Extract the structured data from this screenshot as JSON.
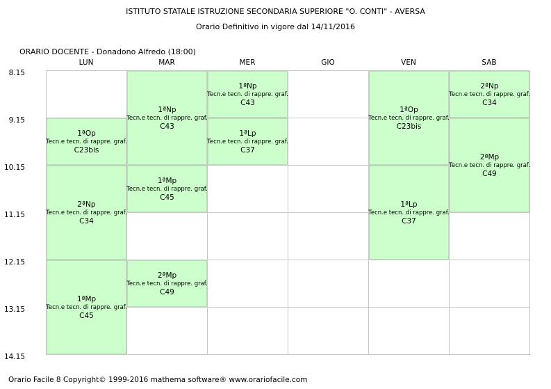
{
  "header": {
    "school": "ISTITUTO STATALE ISTRUZIONE SECONDARIA SUPERIORE \"O. CONTI\" - AVERSA",
    "subtitle": "Orario Definitivo in vigore dal 14/11/2016",
    "teacher": "ORARIO DOCENTE   -   Donadono Alfredo  (18:00)"
  },
  "days": [
    "LUN",
    "MAR",
    "MER",
    "GIO",
    "VEN",
    "SAB"
  ],
  "times": [
    "8.15",
    "9.15",
    "10.15",
    "11.15",
    "12.15",
    "13.15",
    "14.15"
  ],
  "lessons": [
    {
      "day": 0,
      "start": 1,
      "length": 1,
      "class": "1ªOp",
      "subject": "Tecn.e tecn. di rappre. graf.",
      "room": "C23bis"
    },
    {
      "day": 0,
      "start": 2,
      "length": 2,
      "class": "2ªNp",
      "subject": "Tecn.e tecn. di rappre. graf.",
      "room": "C34"
    },
    {
      "day": 0,
      "start": 4,
      "length": 2,
      "class": "1ªMp",
      "subject": "Tecn.e tecn. di rappre. graf.",
      "room": "C45"
    },
    {
      "day": 1,
      "start": 0,
      "length": 2,
      "class": "1ªNp",
      "subject": "Tecn.e tecn. di rappre. graf.",
      "room": "C43"
    },
    {
      "day": 1,
      "start": 2,
      "length": 1,
      "class": "1ªMp",
      "subject": "Tecn.e tecn. di rappre. graf.",
      "room": "C45"
    },
    {
      "day": 1,
      "start": 4,
      "length": 1,
      "class": "2ªMp",
      "subject": "Tecn.e tecn. di rappre. graf.",
      "room": "C49"
    },
    {
      "day": 2,
      "start": 0,
      "length": 1,
      "class": "1ªNp",
      "subject": "Tecn.e tecn. di rappre. graf.",
      "room": "C43"
    },
    {
      "day": 2,
      "start": 1,
      "length": 1,
      "class": "1ªLp",
      "subject": "Tecn.e tecn. di rappre. graf.",
      "room": "C37"
    },
    {
      "day": 4,
      "start": 0,
      "length": 2,
      "class": "1ªOp",
      "subject": "Tecn.e tecn. di rappre. graf.",
      "room": "C23bis"
    },
    {
      "day": 4,
      "start": 2,
      "length": 2,
      "class": "1ªLp",
      "subject": "Tecn.e tecn. di rappre. graf.",
      "room": "C37"
    },
    {
      "day": 5,
      "start": 0,
      "length": 1,
      "class": "2ªNp",
      "subject": "Tecn.e tecn. di rappre. graf.",
      "room": "C34"
    },
    {
      "day": 5,
      "start": 1,
      "length": 2,
      "class": "2ªMp",
      "subject": "Tecn.e tecn. di rappre. graf.",
      "room": "C49"
    }
  ],
  "footer": "Orario Facile 8  Copyright© 1999-2016 mathema software®     www.orariofacile.com"
}
